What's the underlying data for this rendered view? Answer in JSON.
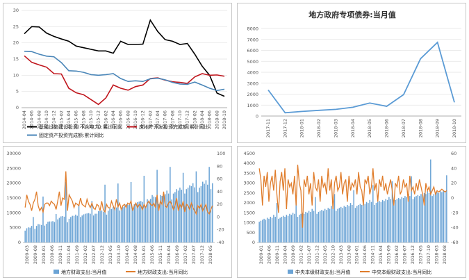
{
  "chart_data": [
    {
      "type": "line",
      "title": "",
      "x": [
        "2014-04",
        "2014-06",
        "2014-08",
        "2014-10",
        "2014-12",
        "2015-02",
        "2015-04",
        "2015-06",
        "2015-08",
        "2015-10",
        "2015-12",
        "2016-02",
        "2016-04",
        "2016-06",
        "2016-08",
        "2016-10",
        "2016-12",
        "2017-02",
        "2017-04",
        "2017-06",
        "2017-08",
        "2017-10",
        "2017-12",
        "2018-02",
        "2018-04",
        "2018-06",
        "2018-08",
        "2018-10"
      ],
      "ylim": [
        0,
        30
      ],
      "yticks": [
        0,
        5,
        10,
        15,
        20,
        25,
        30
      ],
      "grid": true,
      "legend_position": "bottom",
      "series": [
        {
          "name": "基础设施建设投资(不含电力):累计同比",
          "color": "#000000",
          "values": [
            22.8,
            25.0,
            24.9,
            23.0,
            22.0,
            21.2,
            20.5,
            19.0,
            18.5,
            18.0,
            17.5,
            17.5,
            16.8,
            20.5,
            19.5,
            19.5,
            19.6,
            27.0,
            23.5,
            21.0,
            20.5,
            19.5,
            19.8,
            16.5,
            12.8,
            10.0,
            4.5,
            3.5
          ]
        },
        {
          "name": "房地产开发投资完成额:累计同比",
          "color": "#c0161d",
          "values": [
            16.0,
            14.0,
            13.2,
            12.5,
            10.5,
            10.4,
            6.0,
            4.6,
            4.0,
            2.5,
            1.0,
            3.0,
            7.0,
            6.0,
            5.4,
            6.5,
            7.0,
            9.0,
            9.2,
            8.5,
            8.0,
            7.8,
            7.5,
            9.5,
            10.5,
            10.0,
            10.1,
            9.7
          ]
        },
        {
          "name": "固定资产投资完成额:累计同比",
          "color": "#4a86b8",
          "values": [
            17.4,
            17.3,
            16.5,
            15.9,
            15.7,
            13.9,
            11.4,
            11.3,
            10.9,
            10.2,
            10.0,
            10.2,
            10.5,
            9.0,
            8.1,
            8.3,
            8.1,
            8.9,
            9.1,
            8.6,
            7.8,
            7.3,
            7.2,
            7.9,
            7.0,
            6.0,
            5.3,
            5.7
          ]
        }
      ]
    },
    {
      "type": "line",
      "title": "地方政府专项债券:当月值",
      "x": [
        "2017-11",
        "2017-12",
        "2018-01",
        "2018-02",
        "2018-03",
        "2018-04",
        "2018-05",
        "2018-06",
        "2018-07",
        "2018-08",
        "2018-09",
        "2018-10"
      ],
      "ylim": [
        0,
        8000
      ],
      "yticks": [
        0,
        1000,
        2000,
        3000,
        4000,
        5000,
        6000,
        7000,
        8000
      ],
      "grid": true,
      "series": [
        {
          "name": "",
          "color": "#5b9bd5",
          "values": [
            2380,
            300,
            420,
            520,
            610,
            800,
            1190,
            890,
            1960,
            5240,
            6730,
            1250
          ]
        }
      ]
    },
    {
      "type": "bar+line",
      "title": "",
      "x_tick_labels": [
        "2009-03",
        "2009-08",
        "2010-01",
        "2010-06",
        "2010-11",
        "2011-04",
        "2011-09",
        "2012-02",
        "2012-07",
        "2012-12",
        "2013-05",
        "2013-10",
        "2014-03",
        "2014-08",
        "2015-01",
        "2015-06",
        "2015-11",
        "2016-04",
        "2016-09",
        "2017-02",
        "2017-07",
        "2017-12",
        "2018-05"
      ],
      "ylim_left": [
        0,
        30000
      ],
      "ylim_right": [
        -40,
        100
      ],
      "yticks_left": [
        0,
        5000,
        10000,
        15000,
        20000,
        25000,
        30000
      ],
      "yticks_right": [
        -40,
        -20,
        0,
        20,
        40,
        60,
        80,
        100
      ],
      "legend_position": "bottom",
      "series": [
        {
          "name": "地方财政支出:当月值",
          "kind": "bar",
          "axis": "left",
          "color": "#6aa3d5",
          "values": [
            4000,
            4800,
            5100,
            5000,
            5600,
            8600,
            4600,
            5600,
            6200,
            6100,
            5900,
            15500,
            5700,
            6300,
            7000,
            7100,
            7100,
            7200,
            6900,
            9600,
            7800,
            8300,
            8800,
            8900,
            8700,
            20500,
            6800,
            8000,
            8600,
            9000,
            9000,
            9400,
            9000,
            12700,
            8600,
            9100,
            9500,
            9700,
            9800,
            9900,
            9700,
            14000,
            9100,
            9700,
            9700,
            10600,
            10600,
            10800,
            10400,
            19500,
            9400,
            10700,
            11400,
            11300,
            11900,
            11500,
            11800,
            19900,
            10800,
            11400,
            11900,
            12200,
            12900,
            12600,
            12700,
            20400,
            11300,
            12900,
            13000,
            13600,
            13800,
            14000,
            13700,
            22500,
            12000,
            14600,
            14200,
            14700,
            16000,
            15500,
            15300,
            24500,
            13000,
            16000,
            15700,
            16500,
            16300,
            17500,
            16500,
            25500,
            14500,
            16500,
            17000,
            18000,
            17500,
            18500,
            17800,
            23500,
            16500,
            18000,
            18500,
            19300,
            19000,
            20000,
            18600,
            24000,
            17000,
            18500,
            19000,
            20500,
            19800,
            21000,
            19500,
            25500,
            18000,
            20000
          ]
        },
        {
          "name": "地方财政支出:当月同比",
          "kind": "line",
          "axis": "right",
          "color": "#e07d2c",
          "values": [
            15,
            35,
            25,
            20,
            10,
            22,
            28,
            40,
            18,
            10,
            15,
            8,
            20,
            22,
            22,
            18,
            25,
            22,
            20,
            12,
            25,
            40,
            18,
            30,
            28,
            72,
            10,
            35,
            30,
            25,
            15,
            22,
            20,
            18,
            30,
            20,
            18,
            16,
            28,
            20,
            15,
            22,
            14,
            12,
            20,
            18,
            10,
            25,
            12,
            8,
            20,
            15,
            14,
            25,
            18,
            12,
            28,
            16,
            22,
            12,
            18,
            20,
            15,
            22,
            20,
            25,
            10,
            18,
            22,
            15,
            20,
            18,
            12,
            20,
            15,
            22,
            25,
            20,
            18,
            22,
            15,
            35,
            10,
            25,
            20,
            40,
            18,
            15,
            22,
            25,
            20,
            12,
            18,
            30,
            10,
            20,
            15,
            25,
            8,
            20,
            18,
            12,
            22,
            15,
            10,
            5,
            18,
            14,
            20,
            10,
            15,
            20,
            8,
            5,
            12,
            18
          ]
        }
      ]
    },
    {
      "type": "bar+line",
      "title": "",
      "x_tick_labels": [
        "2009-01",
        "2009-06",
        "2009-11",
        "2010-04",
        "2010-09",
        "2011-02",
        "2011-07",
        "2011-12",
        "2012-05",
        "2012-10",
        "2013-03",
        "2013-08",
        "2014-01",
        "2014-06",
        "2014-11",
        "2015-04",
        "2015-09",
        "2016-02",
        "2016-07",
        "2016-12",
        "2017-05",
        "2017-10",
        "2018-03",
        "2018-08"
      ],
      "ylim_left": [
        0,
        4500
      ],
      "ylim_right": [
        -60,
        60
      ],
      "yticks_left": [
        0,
        500,
        1000,
        1500,
        2000,
        2500,
        3000,
        3500,
        4000,
        4500
      ],
      "yticks_right": [
        -60,
        -40,
        -20,
        0,
        20,
        40,
        60
      ],
      "legend_position": "bottom",
      "series": [
        {
          "name": "中央本级财政支出:当月值",
          "kind": "bar",
          "axis": "left",
          "color": "#6aa3d5",
          "values": [
            1050,
            1100,
            1150,
            1200,
            1150,
            1250,
            1200,
            1300,
            1250,
            1400,
            1300,
            2000,
            1200,
            1250,
            1300,
            1350,
            1300,
            1400,
            1350,
            1450,
            1400,
            1500,
            1450,
            2200,
            1300,
            1400,
            1450,
            1500,
            1450,
            1550,
            1500,
            1600,
            1550,
            1700,
            1600,
            2300,
            1450,
            1550,
            1600,
            1650,
            1600,
            1700,
            1650,
            1750,
            1700,
            1850,
            1750,
            2450,
            1600,
            1700,
            1750,
            1800,
            1750,
            1850,
            1800,
            1900,
            1850,
            2000,
            1900,
            2650,
            1750,
            1850,
            1900,
            1950,
            1900,
            2000,
            1950,
            2050,
            2000,
            2150,
            2050,
            2900,
            1900,
            2000,
            2050,
            2100,
            2050,
            2150,
            2100,
            2200,
            2150,
            2300,
            2200,
            3100,
            2050,
            2150,
            2200,
            2250,
            2200,
            2300,
            2250,
            2350,
            2300,
            2450,
            2350,
            3350,
            2200,
            2300,
            2350,
            2400,
            2350,
            2450,
            2400,
            2500,
            2450,
            2600,
            2500,
            4200,
            2350,
            2450,
            2500,
            2550,
            2500,
            2600,
            2550,
            2650,
            2600,
            3400
          ]
        },
        {
          "name": "中央本级财政支出:当月同比",
          "kind": "line",
          "axis": "right",
          "color": "#e07d2c",
          "values": [
            40,
            25,
            -10,
            30,
            15,
            35,
            -5,
            20,
            30,
            10,
            38,
            5,
            -20,
            22,
            35,
            10,
            40,
            -15,
            25,
            15,
            20,
            5,
            30,
            -10,
            45,
            20,
            10,
            -40,
            25,
            15,
            30,
            5,
            20,
            -10,
            35,
            15,
            10,
            25,
            -5,
            30,
            15,
            20,
            5,
            40,
            10,
            25,
            -15,
            20,
            30,
            10,
            15,
            35,
            5,
            20,
            25,
            -5,
            30,
            10,
            20,
            15,
            25,
            5,
            35,
            15,
            10,
            -10,
            25,
            20,
            30,
            5,
            15,
            40,
            10,
            20,
            -5,
            25,
            15,
            30,
            10,
            20,
            5,
            15,
            25,
            10,
            -10,
            20,
            15,
            30,
            5,
            10,
            25,
            15,
            20,
            -5,
            30,
            10,
            15,
            5,
            20,
            10,
            25,
            15,
            5,
            -10,
            20,
            10,
            15,
            5,
            10,
            15,
            5,
            10,
            8,
            10,
            12,
            10,
            8,
            10
          ]
        }
      ]
    }
  ]
}
